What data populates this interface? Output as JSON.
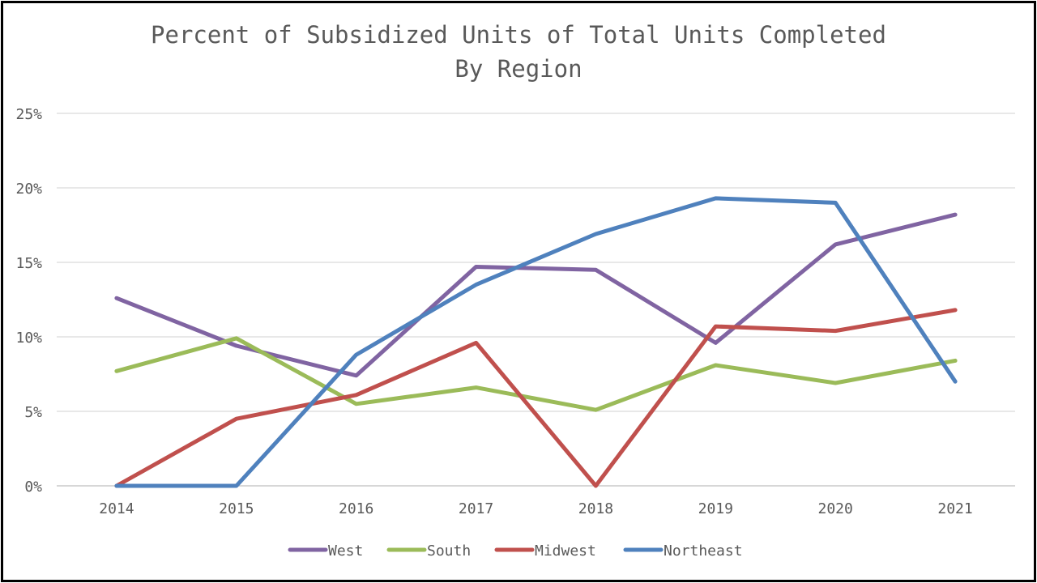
{
  "chart_data": {
    "type": "line",
    "title": "Percent of Subsidized Units of Total Units Completed",
    "subtitle": "By Region",
    "xlabel": "",
    "ylabel": "",
    "x": [
      "2014",
      "2015",
      "2016",
      "2017",
      "2018",
      "2019",
      "2020",
      "2021"
    ],
    "y_ticks": [
      "0%",
      "5%",
      "10%",
      "15%",
      "20%",
      "25%"
    ],
    "ylim": [
      0,
      25
    ],
    "grid": true,
    "legend_position": "bottom",
    "series": [
      {
        "name": "West",
        "color": "#8064A2",
        "values": [
          12.6,
          9.4,
          7.4,
          14.7,
          14.5,
          9.6,
          16.2,
          18.2
        ]
      },
      {
        "name": "South",
        "color": "#9BBB59",
        "values": [
          7.7,
          9.9,
          5.5,
          6.6,
          5.1,
          8.1,
          6.9,
          8.4
        ]
      },
      {
        "name": "Midwest",
        "color": "#C0504D",
        "values": [
          0.0,
          4.5,
          6.1,
          9.6,
          0.0,
          10.7,
          10.4,
          11.8
        ]
      },
      {
        "name": "Northeast",
        "color": "#4F81BD",
        "values": [
          0.0,
          0.0,
          8.8,
          13.5,
          16.9,
          19.3,
          19.0,
          7.0
        ]
      }
    ]
  }
}
